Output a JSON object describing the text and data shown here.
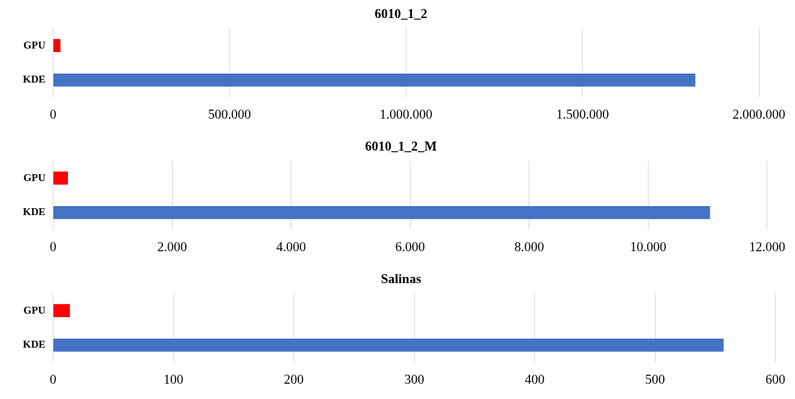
{
  "chart_data": [
    {
      "type": "bar",
      "orientation": "horizontal",
      "title": "6010_1_2",
      "categories": [
        "GPU",
        "KDE"
      ],
      "values": [
        21000,
        1820000
      ],
      "colors": [
        "#ff0000",
        "#4472c4"
      ],
      "xlim": [
        0,
        2000000
      ],
      "xticks": [
        0,
        {
          "value": 500000,
          "label": "500.000"
        },
        {
          "value": 1000000,
          "label": "1.000.000"
        },
        {
          "value": 1500000,
          "label": "1.500.000"
        },
        {
          "value": 2000000,
          "label": "2.000.000"
        }
      ],
      "grid": "x",
      "legend": false
    },
    {
      "type": "bar",
      "orientation": "horizontal",
      "title": "6010_1_2_M",
      "categories": [
        "GPU",
        "KDE"
      ],
      "values": [
        250,
        11040
      ],
      "colors": [
        "#ff0000",
        "#4472c4"
      ],
      "xlim": [
        0,
        12000
      ],
      "xticks": [
        0,
        {
          "value": 2000,
          "label": "2.000"
        },
        {
          "value": 4000,
          "label": "4.000"
        },
        {
          "value": 6000,
          "label": "6.000"
        },
        {
          "value": 8000,
          "label": "8.000"
        },
        {
          "value": 10000,
          "label": "10.000"
        },
        {
          "value": 12000,
          "label": "12.000"
        }
      ],
      "grid": "x",
      "legend": false
    },
    {
      "type": "bar",
      "orientation": "horizontal",
      "title": "Salinas",
      "categories": [
        "GPU",
        "KDE"
      ],
      "values": [
        14,
        557
      ],
      "colors": [
        "#ff0000",
        "#4472c4"
      ],
      "xlim": [
        0,
        600
      ],
      "xticks": [
        0,
        100,
        200,
        300,
        400,
        500,
        600
      ],
      "grid": "x",
      "legend": false
    }
  ]
}
